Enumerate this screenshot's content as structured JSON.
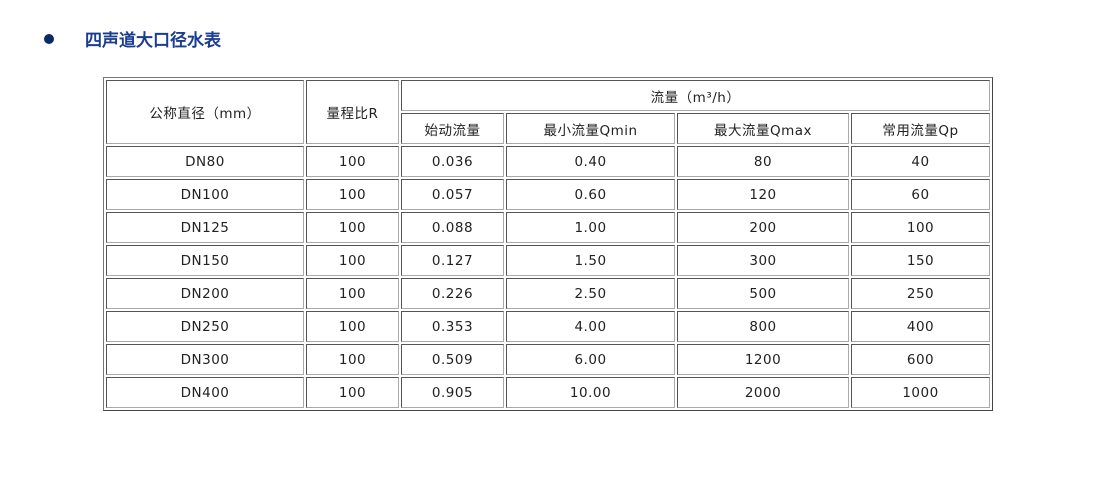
{
  "heading": {
    "title": "四声道大口径水表"
  },
  "table": {
    "header": {
      "diameter": "公称直径（mm）",
      "ratio": "量程比R",
      "flow_group": "流量（m³/h）",
      "flow_cols": [
        "始动流量",
        "最小流量Qmin",
        "最大流量Qmax",
        "常用流量Qp"
      ]
    },
    "rows": [
      [
        "DN80",
        "100",
        "0.036",
        "0.40",
        "80",
        "40"
      ],
      [
        "DN100",
        "100",
        "0.057",
        "0.60",
        "120",
        "60"
      ],
      [
        "DN125",
        "100",
        "0.088",
        "1.00",
        "200",
        "100"
      ],
      [
        "DN150",
        "100",
        "0.127",
        "1.50",
        "300",
        "150"
      ],
      [
        "DN200",
        "100",
        "0.226",
        "2.50",
        "500",
        "250"
      ],
      [
        "DN250",
        "100",
        "0.353",
        "4.00",
        "800",
        "400"
      ],
      [
        "DN300",
        "100",
        "0.509",
        "6.00",
        "1200",
        "600"
      ],
      [
        "DN400",
        "100",
        "0.905",
        "10.00",
        "2000",
        "1000"
      ]
    ]
  }
}
